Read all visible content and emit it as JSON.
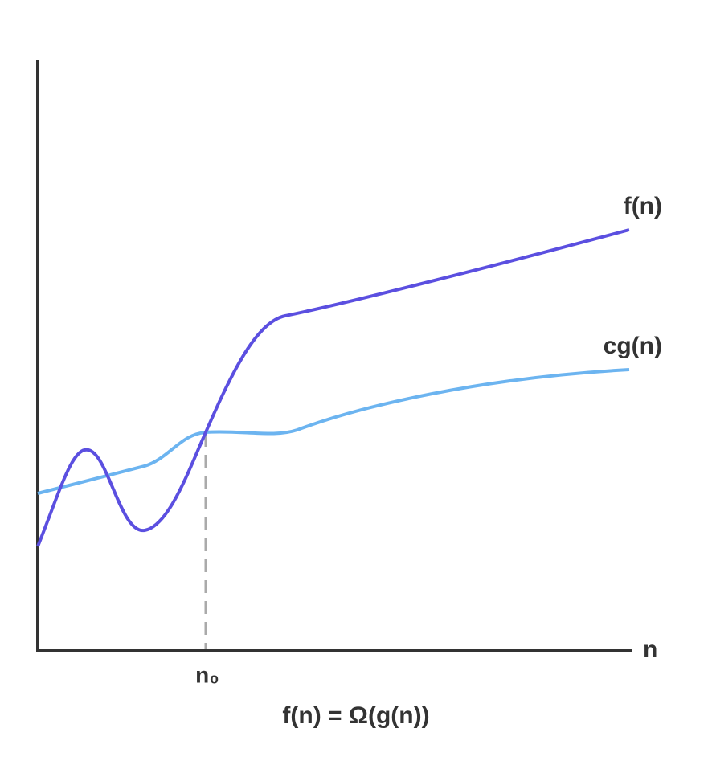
{
  "labels": {
    "f_curve": "f(n)",
    "cg_curve": "cg(n)",
    "x_axis": "n",
    "n0": "n₀",
    "caption": "f(n) = Ω(g(n))"
  }
}
